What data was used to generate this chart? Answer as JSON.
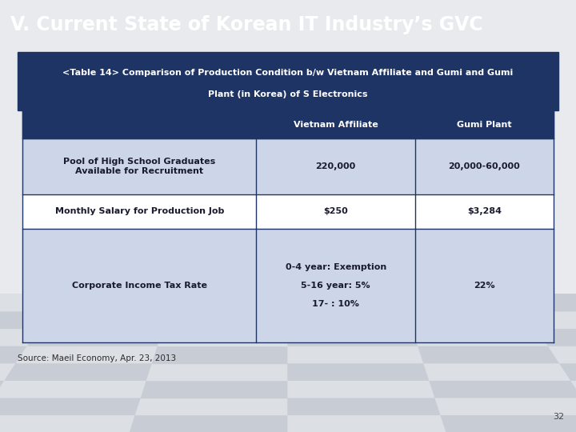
{
  "title": "V. Current State of Korean IT Industry’s GVC",
  "title_bg": "#1e3464",
  "title_color": "#ffffff",
  "subtitle": "<Table 14> Comparison of Production Condition b/w Vietnam Affiliate and Gumi Plant (in Korea) of S Electronics",
  "subtitle_bg": "#1e3464",
  "subtitle_color": "#ffffff",
  "page_bg": "#e8eaed",
  "content_bg": "#ffffff",
  "header_bg": "#1e3464",
  "header_color": "#ffffff",
  "row_bg_odd": "#ccd6e8",
  "row_bg_even": "#ffffff",
  "cell_text_color": "#1a1a2e",
  "border_color": "#1e3464",
  "col_headers": [
    "Vietnam Affiliate",
    "Gumi Plant"
  ],
  "row_labels": [
    "Pool of High School Graduates\nAvailable for Recruitment",
    "Monthly Salary for Production Job",
    "Corporate Income Tax Rate"
  ],
  "data": [
    [
      "220,000",
      "20,000-60,000"
    ],
    [
      "$250",
      "$3,284"
    ],
    [
      "0-4 year: Exemption\n\n5-16 year: 5%\n\n17- : 10%",
      "22%"
    ]
  ],
  "source_text": "Source: Maeil Economy, Apr. 23, 2013",
  "page_number": "32",
  "checker_light": "#dcdfe4",
  "checker_dark": "#c8ccd4",
  "title_fontsize": 17,
  "header_fontsize": 8,
  "cell_fontsize": 8
}
